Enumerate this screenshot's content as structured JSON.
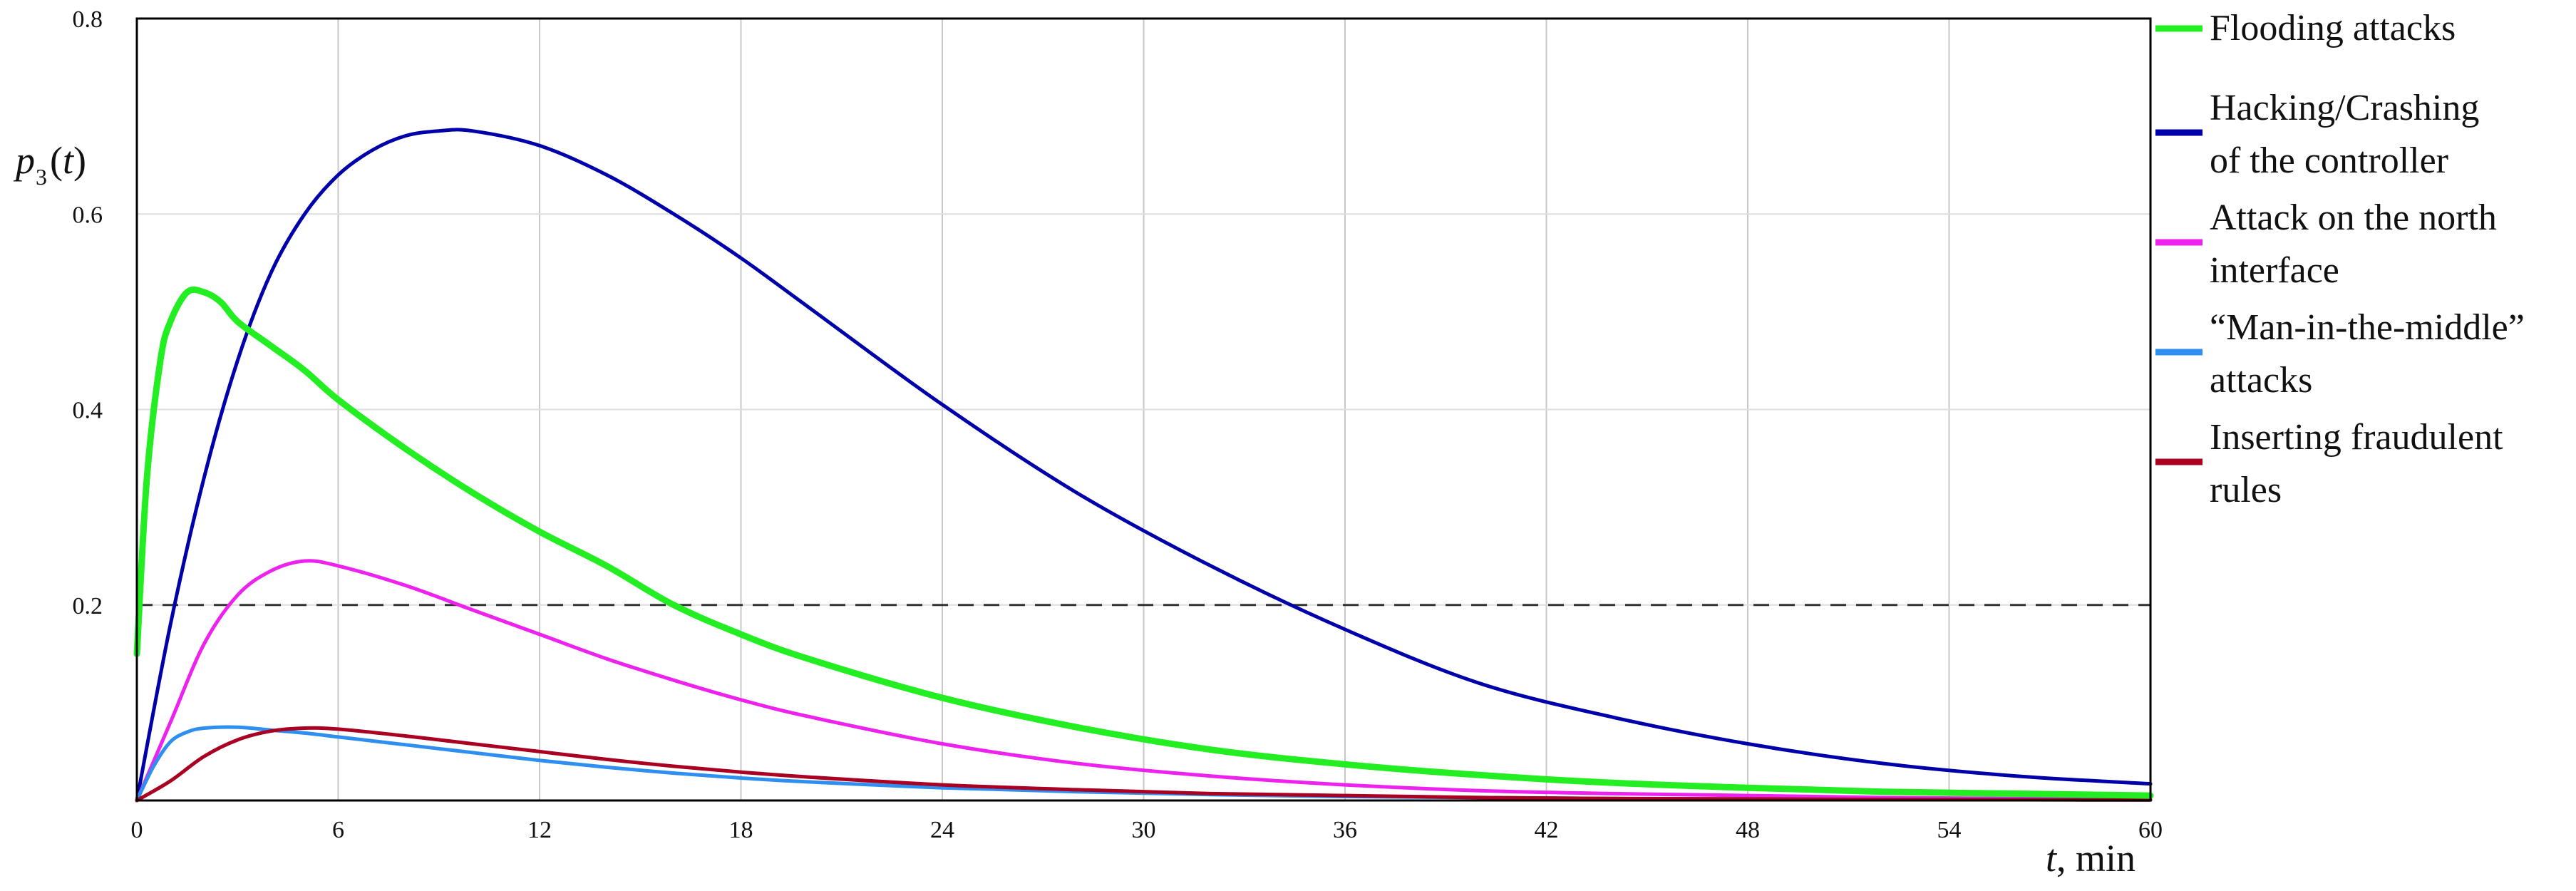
{
  "chart_data": {
    "type": "line",
    "title": "",
    "xlabel": "t, min",
    "ylabel": "p3(t)",
    "xlim": [
      0,
      60
    ],
    "ylim": [
      0,
      0.8
    ],
    "x_ticks": [
      0,
      6,
      12,
      18,
      24,
      30,
      36,
      42,
      48,
      54,
      60
    ],
    "y_ticks": [
      0.2,
      0.4,
      0.6,
      0.8
    ],
    "y_tick_labels": [
      "0.2",
      "0.4",
      "0.6",
      "0.8"
    ],
    "grid": "vertical",
    "legend_placement": "right",
    "threshold": {
      "y": 0.2,
      "style": "dashed",
      "color": "#333333"
    },
    "series": [
      {
        "name": "Flooding attacks",
        "color": "#22ee22",
        "width": 9,
        "x": [
          0,
          0.3,
          0.7,
          1,
          1.5,
          2,
          2.5,
          3,
          4,
          5,
          6,
          8,
          10,
          12,
          14,
          16,
          18,
          20,
          24,
          28,
          32,
          36,
          40,
          44,
          48,
          52,
          56,
          60
        ],
        "y": [
          0.15,
          0.33,
          0.45,
          0.49,
          0.52,
          0.52,
          0.51,
          0.49,
          0.465,
          0.44,
          0.41,
          0.36,
          0.315,
          0.275,
          0.24,
          0.2,
          0.17,
          0.145,
          0.105,
          0.075,
          0.052,
          0.037,
          0.026,
          0.018,
          0.013,
          0.009,
          0.007,
          0.005
        ]
      },
      {
        "name": "Hacking/Crashing of the controller",
        "color": "#0000aa",
        "width": 5,
        "x": [
          0,
          1,
          2,
          3,
          4,
          5,
          6,
          7,
          8,
          9,
          10,
          12,
          14,
          16,
          18,
          20,
          24,
          28,
          32,
          36,
          40,
          44,
          48,
          52,
          56,
          60
        ],
        "y": [
          0,
          0.18,
          0.33,
          0.45,
          0.54,
          0.6,
          0.64,
          0.665,
          0.68,
          0.685,
          0.685,
          0.67,
          0.64,
          0.6,
          0.555,
          0.505,
          0.405,
          0.315,
          0.24,
          0.175,
          0.12,
          0.085,
          0.058,
          0.038,
          0.025,
          0.017
        ]
      },
      {
        "name": "Attack on the north interface",
        "color": "#ee22ee",
        "width": 5,
        "x": [
          0,
          1,
          2,
          3,
          4,
          5,
          6,
          8,
          10,
          12,
          14,
          16,
          18,
          20,
          24,
          28,
          32,
          36,
          40,
          44,
          48,
          52,
          56,
          60
        ],
        "y": [
          0,
          0.08,
          0.16,
          0.21,
          0.235,
          0.245,
          0.24,
          0.22,
          0.195,
          0.17,
          0.145,
          0.123,
          0.103,
          0.086,
          0.058,
          0.038,
          0.025,
          0.016,
          0.01,
          0.007,
          0.005,
          0.003,
          0.002,
          0.001
        ]
      },
      {
        "name": "“Man-in-the-middle” attacks",
        "color": "#2e8ff0",
        "width": 5,
        "x": [
          0,
          0.5,
          1,
          1.5,
          2,
          3,
          4,
          5,
          6,
          8,
          10,
          12,
          14,
          16,
          18,
          20,
          24,
          28,
          32,
          36,
          40,
          44,
          48,
          52,
          56,
          60
        ],
        "y": [
          0,
          0.035,
          0.06,
          0.07,
          0.074,
          0.075,
          0.072,
          0.069,
          0.065,
          0.057,
          0.049,
          0.041,
          0.034,
          0.028,
          0.023,
          0.019,
          0.013,
          0.009,
          0.006,
          0.004,
          0.003,
          0.002,
          0.0015,
          0.001,
          0.001,
          0.0005
        ]
      },
      {
        "name": "Inserting fraudulent rules",
        "color": "#aa0022",
        "width": 5,
        "x": [
          0,
          1,
          2,
          3,
          4,
          5,
          6,
          8,
          10,
          12,
          14,
          16,
          18,
          20,
          24,
          28,
          32,
          36,
          40,
          44,
          48,
          52,
          56,
          60
        ],
        "y": [
          0,
          0.02,
          0.045,
          0.062,
          0.071,
          0.074,
          0.073,
          0.066,
          0.058,
          0.05,
          0.042,
          0.035,
          0.029,
          0.024,
          0.016,
          0.011,
          0.007,
          0.005,
          0.003,
          0.002,
          0.0015,
          0.001,
          0.0007,
          0.0005
        ]
      }
    ]
  }
}
